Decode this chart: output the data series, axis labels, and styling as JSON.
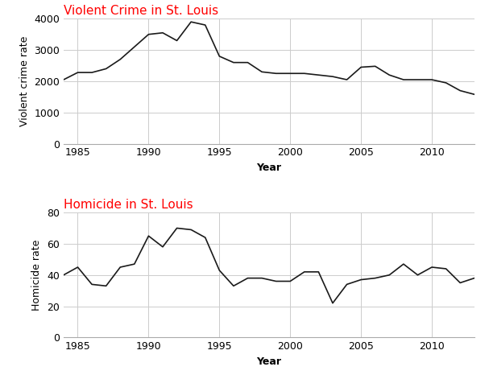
{
  "years": [
    1984,
    1985,
    1986,
    1987,
    1988,
    1989,
    1990,
    1991,
    1992,
    1993,
    1994,
    1995,
    1996,
    1997,
    1998,
    1999,
    2000,
    2001,
    2002,
    2003,
    2004,
    2005,
    2006,
    2007,
    2008,
    2009,
    2010,
    2011,
    2012,
    2013
  ],
  "violent_crime": [
    2050,
    2280,
    2280,
    2400,
    2700,
    3100,
    3500,
    3550,
    3300,
    3900,
    3800,
    2800,
    2600,
    2600,
    2300,
    2250,
    2250,
    2250,
    2200,
    2150,
    2050,
    2450,
    2480,
    2200,
    2050,
    2050,
    2050,
    1950,
    1700,
    1580
  ],
  "homicide": [
    40,
    45,
    34,
    33,
    45,
    47,
    65,
    58,
    70,
    69,
    64,
    43,
    33,
    38,
    38,
    36,
    36,
    42,
    42,
    22,
    34,
    37,
    38,
    40,
    47,
    40,
    45,
    44,
    35,
    38
  ],
  "title1": "Violent Crime in St. Louis",
  "title2": "Homicide in St. Louis",
  "ylabel1": "Violent crime rate",
  "ylabel2": "Homicide rate",
  "xlabel": "Year",
  "title_color": "#ff0000",
  "line_color": "#1a1a1a",
  "grid_color": "#cccccc",
  "ylim1": [
    0,
    4000
  ],
  "ylim2": [
    0,
    80
  ],
  "yticks1": [
    0,
    1000,
    2000,
    3000,
    4000
  ],
  "yticks2": [
    0,
    20,
    40,
    60,
    80
  ],
  "xlim": [
    1984,
    2013
  ],
  "xticks": [
    1985,
    1990,
    1995,
    2000,
    2005,
    2010
  ],
  "bg_color": "#ffffff",
  "title_fontsize": 11,
  "label_fontsize": 9,
  "tick_fontsize": 9,
  "linewidth": 1.2
}
